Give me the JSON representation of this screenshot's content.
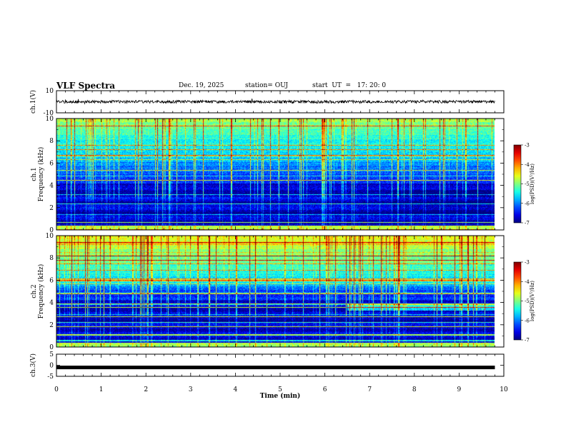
{
  "header": {
    "title": "VLF Spectra",
    "date": "Dec. 19, 2025",
    "station": "station= OUJ",
    "start": "start  UT  =   17: 20: 0"
  },
  "chart_data": [
    {
      "type": "line",
      "name": "ch1-voltage",
      "ylabel": "ch.1(V)",
      "ylim": [
        -10,
        10
      ],
      "ytick_labels": [
        "10",
        "-10"
      ],
      "yticks": [
        10,
        -10
      ],
      "trace_level": 0
    },
    {
      "type": "heatmap",
      "name": "ch1-spectrogram",
      "ylabel": "ch.1\nFrequency (kHz)",
      "ylabel_lines": [
        "ch.1",
        "Frequency  (kHz)"
      ],
      "ylim": [
        0,
        10
      ],
      "yticks": [
        0,
        2,
        4,
        6,
        8,
        10
      ],
      "ytick_labels": [
        "0",
        "2",
        "4",
        "6",
        "8",
        "10"
      ],
      "colorbar": {
        "label": "log(PSD)(V²/Hz)",
        "range": [
          -7,
          -3
        ],
        "ticks": [
          -3,
          -4,
          -5,
          -6,
          -7
        ],
        "tick_labels": [
          "-3",
          "-4",
          "-5",
          "-6",
          "-7"
        ]
      }
    },
    {
      "type": "heatmap",
      "name": "ch2-spectrogram",
      "ylabel": "ch.2\nFrequency (kHz)",
      "ylabel_lines": [
        "ch.2",
        "Frequency  (kHz)"
      ],
      "ylim": [
        0,
        10
      ],
      "yticks": [
        0,
        2,
        4,
        6,
        8,
        10
      ],
      "ytick_labels": [
        "0",
        "2",
        "4",
        "6",
        "8",
        "10"
      ],
      "colorbar": {
        "label": "log(PSD)(V²/Hz)",
        "range": [
          -7,
          -3
        ],
        "ticks": [
          -3,
          -4,
          -5,
          -6,
          -7
        ],
        "tick_labels": [
          "-3",
          "-4",
          "-5",
          "-6",
          "-7"
        ]
      }
    },
    {
      "type": "line",
      "name": "ch3-voltage",
      "ylabel": "ch.3(V)",
      "ylim": [
        -5,
        5
      ],
      "yticks": [
        5,
        0,
        -5
      ],
      "ytick_labels": [
        "5",
        "0",
        "-5"
      ],
      "trace_level": -1
    }
  ],
  "x_axis": {
    "label": "Time  (min)",
    "range": [
      0,
      10
    ],
    "ticks": [
      0,
      1,
      2,
      3,
      4,
      5,
      6,
      7,
      8,
      9,
      10
    ],
    "tick_labels": [
      "0",
      "1",
      "2",
      "3",
      "4",
      "5",
      "6",
      "7",
      "8",
      "9",
      "10"
    ],
    "data_end": 9.8
  }
}
